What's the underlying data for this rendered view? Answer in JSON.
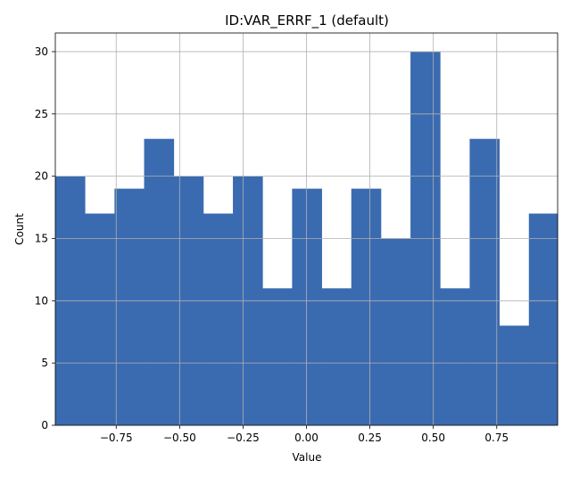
{
  "chart_data": {
    "type": "bar",
    "title": "ID:VAR_ERRF_1 (default)",
    "xlabel": "Value",
    "ylabel": "Count",
    "grid": true,
    "bar_color": "#3a6bb1",
    "grid_color": "#b0b0b0",
    "xlim": [
      -0.99,
      0.99
    ],
    "ylim": [
      0,
      31.5
    ],
    "bin_edges": [
      -0.99,
      -0.8733,
      -0.7567,
      -0.64,
      -0.5233,
      -0.4067,
      -0.29,
      -0.1733,
      -0.0567,
      0.06,
      0.1767,
      0.2933,
      0.41,
      0.5267,
      0.6433,
      0.76,
      0.8767,
      0.99
    ],
    "values": [
      20,
      17,
      19,
      23,
      20,
      17,
      20,
      11,
      19,
      11,
      19,
      15,
      30,
      11,
      23,
      8,
      17
    ],
    "x_ticks": [
      {
        "value": -0.75,
        "label": "−0.75"
      },
      {
        "value": -0.5,
        "label": "−0.50"
      },
      {
        "value": -0.25,
        "label": "−0.25"
      },
      {
        "value": 0.0,
        "label": "0.00"
      },
      {
        "value": 0.25,
        "label": "0.25"
      },
      {
        "value": 0.5,
        "label": "0.50"
      },
      {
        "value": 0.75,
        "label": "0.75"
      }
    ],
    "y_ticks": [
      {
        "value": 0,
        "label": "0"
      },
      {
        "value": 5,
        "label": "5"
      },
      {
        "value": 10,
        "label": "10"
      },
      {
        "value": 15,
        "label": "15"
      },
      {
        "value": 20,
        "label": "20"
      },
      {
        "value": 25,
        "label": "25"
      },
      {
        "value": 30,
        "label": "30"
      }
    ]
  }
}
